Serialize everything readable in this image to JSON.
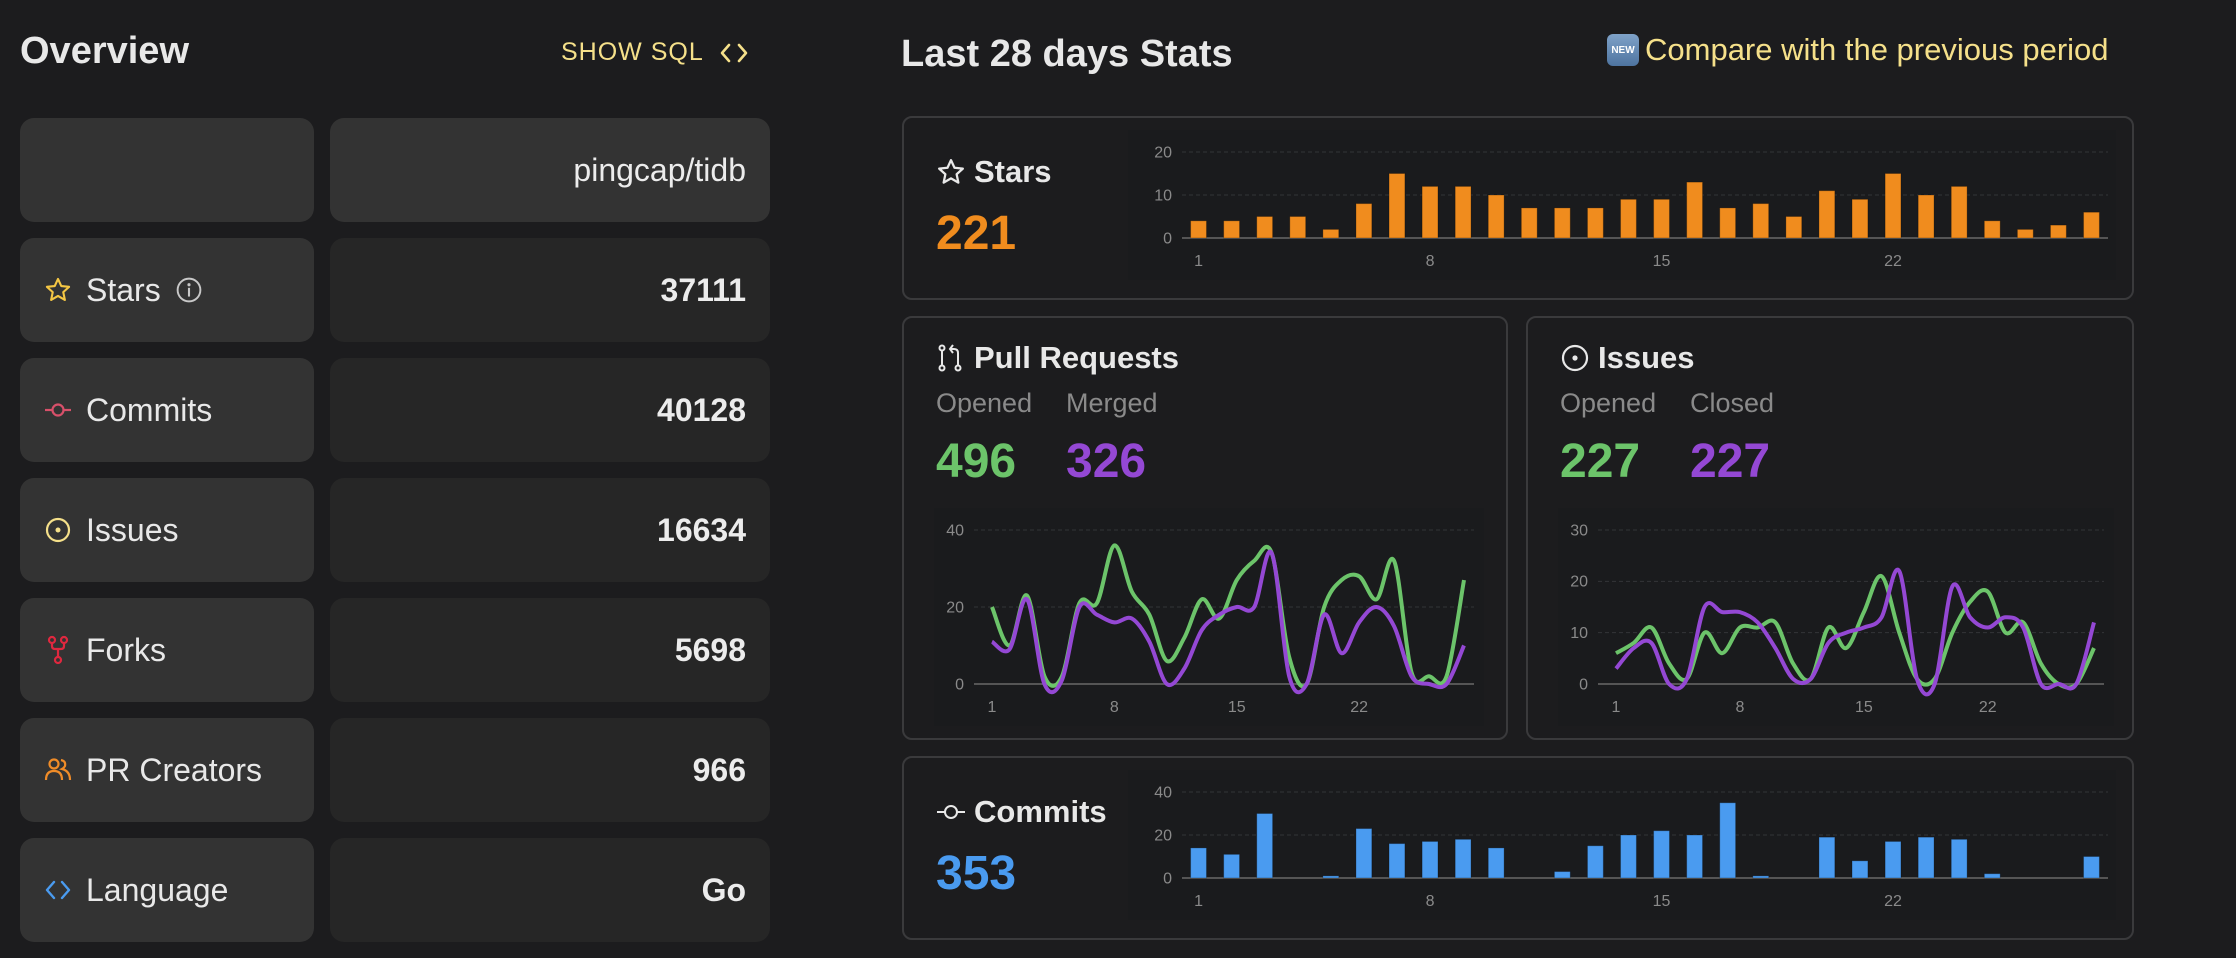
{
  "overview": {
    "title": "Overview",
    "show_sql_label": "SHOW SQL",
    "repo_name": "pingcap/tidb",
    "rows": [
      {
        "label": "Stars",
        "value": "37111",
        "icon": "star-icon",
        "color": "#f5c744",
        "info": true
      },
      {
        "label": "Commits",
        "value": "40128",
        "icon": "commit-icon",
        "color": "#d8506a"
      },
      {
        "label": "Issues",
        "value": "16634",
        "icon": "issue-icon",
        "color": "#f5e08a"
      },
      {
        "label": "Forks",
        "value": "5698",
        "icon": "fork-icon",
        "color": "#e0283f"
      },
      {
        "label": "PR Creators",
        "value": "966",
        "icon": "people-icon",
        "color": "#f08c28"
      },
      {
        "label": "Language",
        "value": "Go",
        "icon": "code-icon",
        "color": "#4a9bf0"
      }
    ]
  },
  "stats": {
    "title": "Last 28 days Stats",
    "compare_badge": "NEW",
    "compare_label": "Compare with the previous period",
    "stars": {
      "title": "Stars",
      "total": "221",
      "color": "#f08c1e"
    },
    "pull_requests": {
      "title": "Pull Requests",
      "opened_label": "Opened",
      "merged_label": "Merged",
      "opened": "496",
      "merged": "326"
    },
    "issues": {
      "title": "Issues",
      "opened_label": "Opened",
      "closed_label": "Closed",
      "opened": "227",
      "closed": "227"
    },
    "commits": {
      "title": "Commits",
      "total": "353",
      "color": "#4a9bf0"
    },
    "colors": {
      "green": "#6cc46a",
      "purple": "#9448d4"
    }
  },
  "chart_data": [
    {
      "type": "bar",
      "title": "Stars",
      "x": [
        1,
        2,
        3,
        4,
        5,
        6,
        7,
        8,
        9,
        10,
        11,
        12,
        13,
        14,
        15,
        16,
        17,
        18,
        19,
        20,
        21,
        22,
        23,
        24,
        25,
        26,
        27,
        28
      ],
      "xticks": [
        "1",
        "8",
        "15",
        "22"
      ],
      "yticks": [
        "0",
        "10",
        "20"
      ],
      "ylim": [
        0,
        20
      ],
      "grid": true,
      "series": [
        {
          "name": "Stars",
          "values": [
            4,
            4,
            5,
            5,
            2,
            8,
            15,
            12,
            12,
            10,
            7,
            7,
            7,
            9,
            9,
            13,
            7,
            8,
            5,
            11,
            9,
            15,
            10,
            12,
            4,
            2,
            3,
            6
          ]
        }
      ]
    },
    {
      "type": "line",
      "title": "Pull Requests",
      "x": [
        1,
        2,
        3,
        4,
        5,
        6,
        7,
        8,
        9,
        10,
        11,
        12,
        13,
        14,
        15,
        16,
        17,
        18,
        19,
        20,
        21,
        22,
        23,
        24,
        25,
        26,
        27,
        28
      ],
      "xticks": [
        "1",
        "8",
        "15",
        "22"
      ],
      "yticks": [
        "0",
        "20",
        "40"
      ],
      "ylim": [
        0,
        40
      ],
      "grid": true,
      "series": [
        {
          "name": "Opened",
          "values": [
            20,
            10,
            23,
            2,
            2,
            21,
            21,
            36,
            24,
            18,
            6,
            12,
            22,
            17,
            27,
            32,
            34,
            7,
            0,
            20,
            27,
            28,
            22,
            32,
            3,
            2,
            2,
            27
          ]
        },
        {
          "name": "Merged",
          "values": [
            11,
            9,
            22,
            0,
            1,
            20,
            18,
            16,
            17,
            11,
            0,
            4,
            14,
            18,
            20,
            20,
            34,
            2,
            0,
            18,
            8,
            16,
            20,
            15,
            2,
            0,
            0,
            10
          ]
        }
      ]
    },
    {
      "type": "line",
      "title": "Issues",
      "x": [
        1,
        2,
        3,
        4,
        5,
        6,
        7,
        8,
        9,
        10,
        11,
        12,
        13,
        14,
        15,
        16,
        17,
        18,
        19,
        20,
        21,
        22,
        23,
        24,
        25,
        26,
        27,
        28
      ],
      "xticks": [
        "1",
        "8",
        "15",
        "22"
      ],
      "yticks": [
        "0",
        "10",
        "20",
        "30"
      ],
      "ylim": [
        0,
        30
      ],
      "grid": true,
      "series": [
        {
          "name": "Opened",
          "values": [
            6,
            8,
            11,
            4,
            1,
            10,
            6,
            11,
            11,
            12,
            4,
            1,
            11,
            7,
            14,
            21,
            10,
            1,
            1,
            10,
            16,
            18,
            10,
            12,
            4,
            0,
            0,
            7
          ]
        },
        {
          "name": "Closed",
          "values": [
            3,
            7,
            8,
            0,
            1,
            15,
            14,
            14,
            12,
            7,
            1,
            1,
            8,
            10,
            11,
            13,
            22,
            1,
            0,
            19,
            13,
            11,
            13,
            11,
            0,
            0,
            0,
            12
          ]
        }
      ]
    },
    {
      "type": "bar",
      "title": "Commits",
      "x": [
        1,
        2,
        3,
        4,
        5,
        6,
        7,
        8,
        9,
        10,
        11,
        12,
        13,
        14,
        15,
        16,
        17,
        18,
        19,
        20,
        21,
        22,
        23,
        24,
        25,
        26,
        27,
        28
      ],
      "xticks": [
        "1",
        "8",
        "15",
        "22"
      ],
      "yticks": [
        "0",
        "20",
        "40"
      ],
      "ylim": [
        0,
        40
      ],
      "grid": true,
      "series": [
        {
          "name": "Commits",
          "values": [
            14,
            11,
            30,
            0,
            1,
            23,
            16,
            17,
            18,
            14,
            0,
            3,
            15,
            20,
            22,
            20,
            35,
            1,
            0,
            19,
            8,
            17,
            19,
            18,
            2,
            0,
            0,
            10
          ]
        }
      ]
    }
  ]
}
